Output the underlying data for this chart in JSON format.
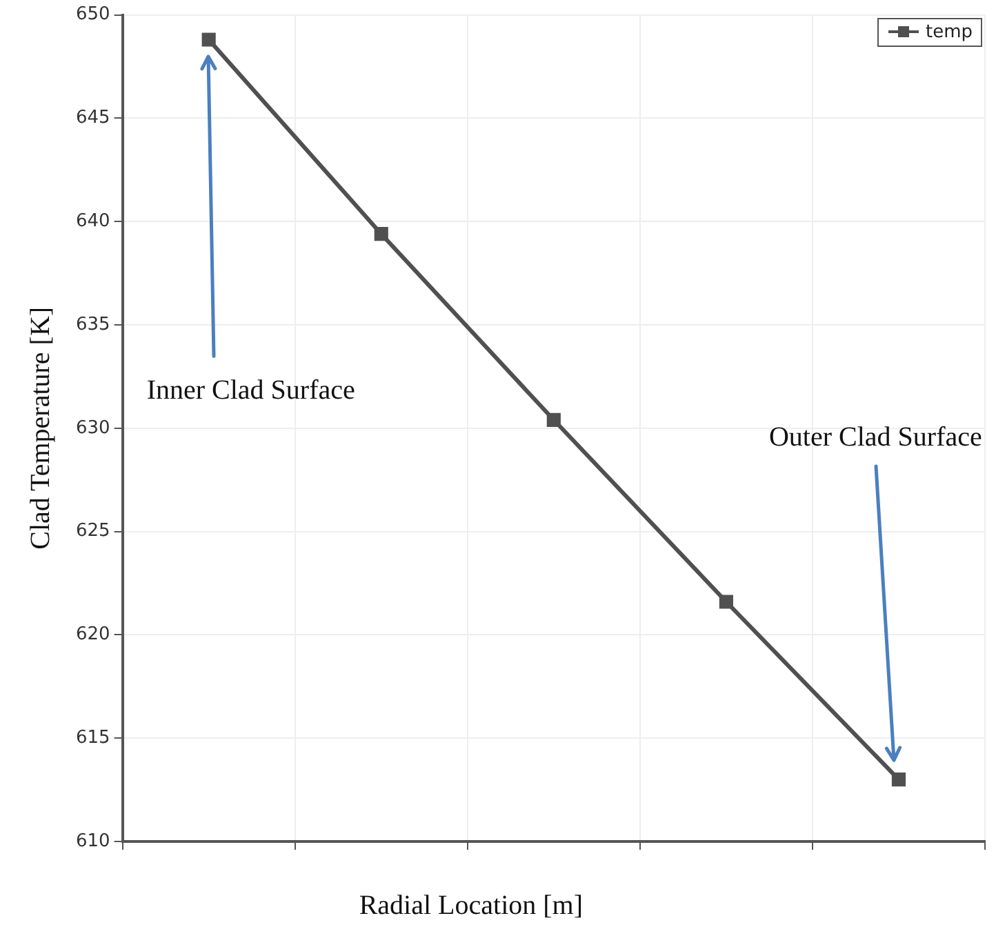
{
  "chart_data": {
    "type": "line",
    "xlabel": "Radial Location [m]",
    "ylabel": "Clad Temperature [K]",
    "categories": [
      null,
      null,
      null,
      null,
      null
    ],
    "series": [
      {
        "name": "temp",
        "color": "#505050",
        "values": [
          648.8,
          639.4,
          630.4,
          621.6,
          613.0
        ]
      }
    ],
    "ylim": [
      610,
      650
    ],
    "yticks": [
      610,
      615,
      620,
      625,
      630,
      635,
      640,
      645,
      650
    ],
    "grid": true,
    "legend": "top right",
    "marker": "square",
    "line_style": "solid",
    "tick_labels": "y",
    "annotations": [
      "Inner Clad Surface",
      "Outer Clad Surface"
    ]
  }
}
